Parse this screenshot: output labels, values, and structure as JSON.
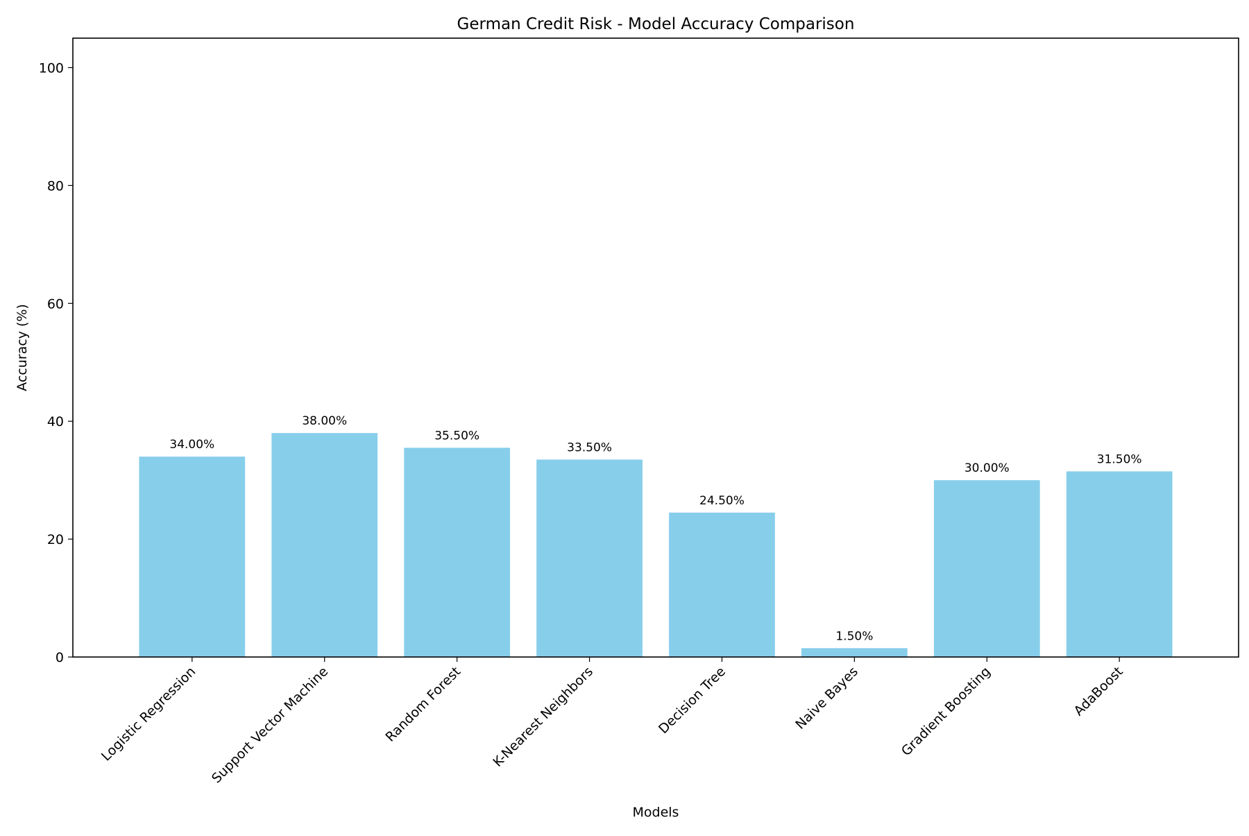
{
  "chart_data": {
    "type": "bar",
    "title": "German Credit Risk - Model Accuracy Comparison",
    "xlabel": "Models",
    "ylabel": "Accuracy (%)",
    "categories": [
      "Logistic Regression",
      "Support Vector Machine",
      "Random Forest",
      "K-Nearest Neighbors",
      "Decision Tree",
      "Naive Bayes",
      "Gradient Boosting",
      "AdaBoost"
    ],
    "values": [
      34.0,
      38.0,
      35.5,
      33.5,
      24.5,
      1.5,
      30.0,
      31.5
    ],
    "data_labels": [
      "34.00%",
      "38.00%",
      "35.50%",
      "33.50%",
      "24.50%",
      "1.50%",
      "30.00%",
      "31.50%"
    ],
    "ylim": [
      0,
      105
    ],
    "yticks": [
      0,
      20,
      40,
      60,
      80,
      100
    ],
    "ytick_labels": [
      "0",
      "20",
      "40",
      "60",
      "80",
      "100"
    ],
    "grid": false,
    "bar_color": "#87ceeb",
    "x_tick_rotation_deg": 45
  }
}
